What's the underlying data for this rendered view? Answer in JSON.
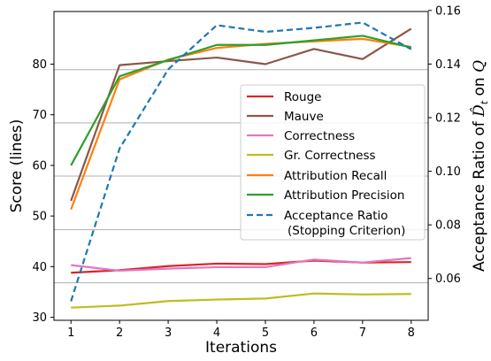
{
  "chart_data": {
    "type": "line",
    "x": [
      1,
      2,
      3,
      4,
      5,
      6,
      7,
      8
    ],
    "xlabel": "Iterations",
    "ylabel": "Score (lines)",
    "ylabel_right": "Acceptance Ratio of D̂_t on Q",
    "ylim": [
      29.4,
      90.4
    ],
    "ylim_right": [
      0.0444,
      0.1596
    ],
    "yticks": [
      30,
      40,
      50,
      60,
      70,
      80
    ],
    "yticks_right": [
      0.06,
      0.08,
      0.1,
      0.12,
      0.14,
      0.16
    ],
    "horizontal_reference_lines": [
      36.8,
      47.3,
      57.9,
      68.4,
      78.9
    ],
    "legend_position": "center-right",
    "series": [
      {
        "name": "Rouge",
        "color": "#d62728",
        "style": "solid",
        "axis": "left",
        "values": [
          38.8,
          39.3,
          40.1,
          40.6,
          40.5,
          41.2,
          40.8,
          40.9
        ]
      },
      {
        "name": "Mauve",
        "color": "#8c564b",
        "style": "solid",
        "axis": "left",
        "values": [
          53.0,
          79.8,
          80.6,
          81.3,
          80.0,
          83.0,
          81.0,
          87.0
        ]
      },
      {
        "name": "Correctness",
        "color": "#e377c2",
        "style": "solid",
        "axis": "left",
        "values": [
          40.3,
          39.2,
          39.6,
          39.9,
          39.9,
          41.4,
          40.8,
          41.7
        ]
      },
      {
        "name": "Gr. Correctness",
        "color": "#bcbd22",
        "style": "solid",
        "axis": "left",
        "values": [
          31.9,
          32.3,
          33.2,
          33.5,
          33.7,
          34.7,
          34.5,
          34.6
        ]
      },
      {
        "name": "Attribution Recall",
        "color": "#ff7f0e",
        "style": "solid",
        "axis": "left",
        "values": [
          51.3,
          77.0,
          80.9,
          83.2,
          84.0,
          84.5,
          85.0,
          83.4
        ]
      },
      {
        "name": "Attribution Precision",
        "color": "#2ca02c",
        "style": "solid",
        "axis": "left",
        "values": [
          60.0,
          77.6,
          80.8,
          83.8,
          83.8,
          84.7,
          85.6,
          83.3
        ]
      },
      {
        "name": "Acceptance Ratio\n(Stopping Criterion)",
        "color": "#1f77b4",
        "style": "dashed",
        "axis": "right",
        "values": [
          0.0515,
          0.1085,
          0.138,
          0.1545,
          0.152,
          0.1535,
          0.1555,
          0.1455
        ]
      }
    ]
  }
}
